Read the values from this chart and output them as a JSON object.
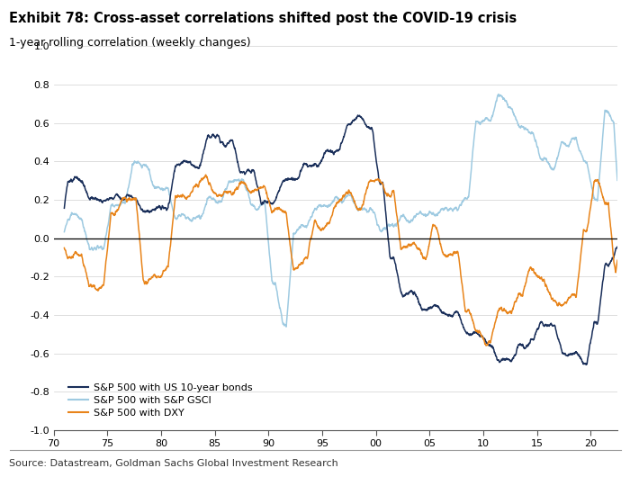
{
  "title": "Exhibit 78: Cross-asset correlations shifted post the COVID-19 crisis",
  "subtitle": "1-year rolling correlation (weekly changes)",
  "source": "Source: Datastream, Goldman Sachs Global Investment Research",
  "legend": [
    "S&P 500 with US 10-year bonds",
    "S&P 500 with S&P GSCI",
    "S&P 500 with DXY"
  ],
  "colors": {
    "bonds": "#1a2f5a",
    "gsci": "#9ecae1",
    "dxy": "#e8841a"
  },
  "ylim": [
    -1.0,
    1.0
  ],
  "yticks": [
    -1.0,
    -0.8,
    -0.6,
    -0.4,
    -0.2,
    0.0,
    0.2,
    0.4,
    0.6,
    0.8,
    1.0
  ],
  "xticks": [
    1970,
    1975,
    1980,
    1985,
    1990,
    1995,
    2000,
    2005,
    2010,
    2015,
    2020
  ],
  "xtick_labels": [
    "70",
    "75",
    "80",
    "85",
    "90",
    "95",
    "00",
    "05",
    "10",
    "15",
    "20"
  ],
  "xlim": [
    1970,
    2022.5
  ],
  "background_color": "#ffffff",
  "grid_color": "#d0d0d0"
}
